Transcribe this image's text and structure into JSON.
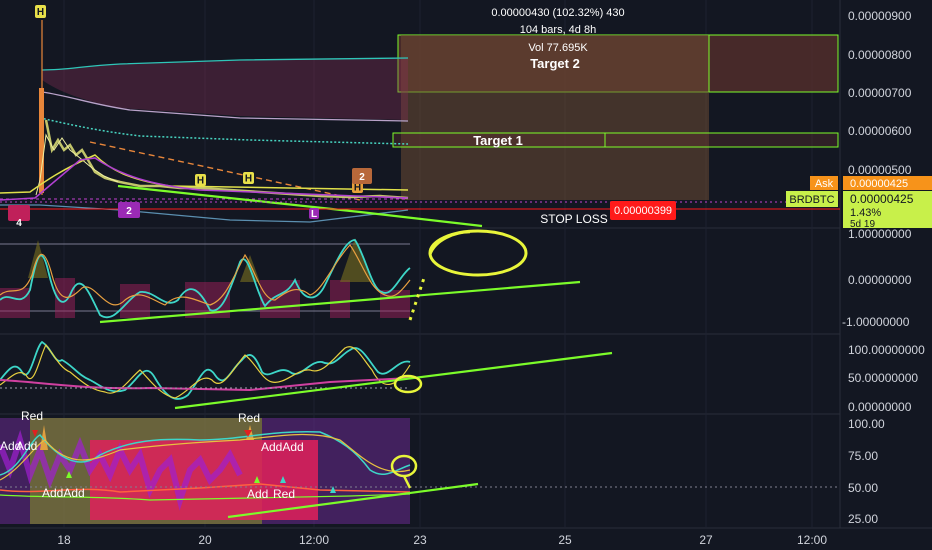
{
  "chart_data": {
    "type": "candlestick",
    "symbol": "BRDBTC",
    "price_axis": {
      "ticks": [
        "0.00000900",
        "0.00000800",
        "0.00000700",
        "0.00000600",
        "0.00000500"
      ],
      "range": [
        4e-06,
        9.4e-06
      ]
    },
    "x_axis": {
      "ticks": [
        "18",
        "20",
        "12:00",
        "23",
        "25",
        "27",
        "12:00"
      ]
    },
    "measure_info": {
      "line1": "0.00000430 (102.32%) 430",
      "line2": "104 bars, 4d 8h",
      "line3": "Vol 77.695K"
    },
    "targets": {
      "target1": "Target 1",
      "target2": "Target 2",
      "stop": "STOP LOSS",
      "stop_price": "0.00000399"
    },
    "price_labels": {
      "ask_tag": "Ask",
      "ask_price": "0.00000425",
      "symbol_tag": "BRDBTC",
      "last_price": "0.00000425",
      "change_pct": "1.43%",
      "countdown": "5d 19"
    },
    "markers": {
      "h": "H",
      "l": "L",
      "two": "2",
      "four": "4"
    },
    "osc1": {
      "ticks": [
        "1.00000000",
        "0.00000000",
        "-1.00000000"
      ],
      "range": [
        -1.3,
        1.3
      ]
    },
    "osc2": {
      "ticks": [
        "100.00000000",
        "50.00000000",
        "0.00000000"
      ],
      "range": [
        -5,
        110
      ]
    },
    "osc3": {
      "ticks": [
        "100.00",
        "75.00",
        "50.00",
        "25.00"
      ],
      "range": [
        20,
        105
      ]
    },
    "signals": {
      "red": "Red",
      "add": "Add",
      "addadd": "AddAdd"
    },
    "colors": {
      "bg": "#131722",
      "bull": "#26a69a",
      "bear": "#ef5350",
      "trend": "#7cfc2a",
      "annot_yellow": "#e8f53a",
      "target_box": "#6b3a33",
      "stop_red": "#ff1a1a"
    }
  }
}
